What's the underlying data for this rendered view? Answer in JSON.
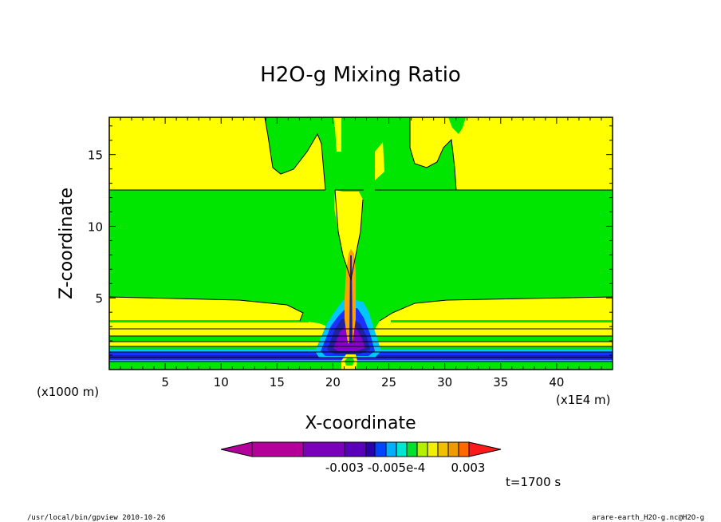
{
  "chart_data": {
    "type": "heatmap",
    "title": "H2O-g Mixing Ratio",
    "xlabel": "X-coordinate",
    "ylabel": "Z-coordinate",
    "x_unit": "(x1E4 m)",
    "y_unit": "(x1000 m)",
    "xlim": [
      0,
      45
    ],
    "ylim": [
      0,
      17.6
    ],
    "x_ticks": [
      "5",
      "10",
      "15",
      "20",
      "25",
      "30",
      "35",
      "40"
    ],
    "y_ticks": [
      "5",
      "10",
      "15"
    ],
    "colorbar_labels": [
      "-0.003",
      "-0.005e-4",
      "0.003"
    ],
    "colorbar_colors": [
      "#b4009b",
      "#7a00b9",
      "#5a00b8",
      "#2b00a8",
      "#0044ff",
      "#00b0ff",
      "#00e6d0",
      "#00e030",
      "#b5f000",
      "#f0f000",
      "#f0c000",
      "#f09a00",
      "#ff6a00",
      "#ff1a1a"
    ],
    "grid": false,
    "time_label": "t=1700 s",
    "colors": {
      "green": "#00e600",
      "yellow": "#ffff00",
      "blue": "#1a30ff",
      "navy": "#2020a0",
      "cyan": "#00c8ff",
      "orange": "#ffa000",
      "purple": "#8800cc"
    }
  },
  "footer": {
    "left": "/usr/local/bin/gpview  2010-10-26",
    "right": "arare-earth_H2O-g.nc@H2O-g"
  }
}
